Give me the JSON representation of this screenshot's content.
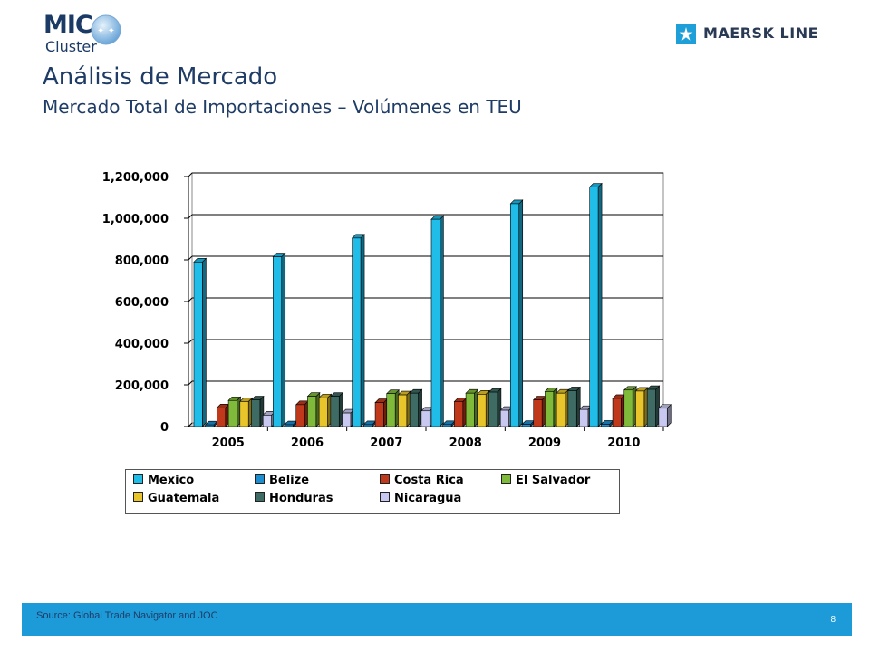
{
  "header": {
    "mic_logo_text": "MIC",
    "mic_logo_sub": "Cluster",
    "maersk_logo_text": "MAERSK LINE"
  },
  "slide": {
    "title": "Análisis de Mercado",
    "subtitle": "Mercado Total de Importaciones – Volúmenes en TEU"
  },
  "footer": {
    "source": "Source: Global Trade Navigator and JOC",
    "page_number": "8"
  },
  "colors": {
    "accent": "#1d9bd8",
    "title": "#1f3c67"
  },
  "chart_data": {
    "type": "bar",
    "title": "",
    "xlabel": "",
    "ylabel": "",
    "categories": [
      "2005",
      "2006",
      "2007",
      "2008",
      "2009",
      "2010"
    ],
    "ylim": [
      0,
      1200000
    ],
    "yticks": [
      0,
      200000,
      400000,
      600000,
      800000,
      1000000,
      1200000
    ],
    "ytick_labels": [
      "0",
      "200,000",
      "400,000",
      "600,000",
      "800,000",
      "1,000,000",
      "1,200,000"
    ],
    "grid": true,
    "legend_position": "bottom",
    "series": [
      {
        "name": "Mexico",
        "color": "#1fbde8",
        "values": [
          790000,
          815000,
          905000,
          995000,
          1070000,
          1150000
        ]
      },
      {
        "name": "Belize",
        "color": "#1d8fd0",
        "values": [
          8000,
          8500,
          9000,
          9500,
          10000,
          11000
        ]
      },
      {
        "name": "Costa Rica",
        "color": "#c0391b",
        "values": [
          90000,
          105000,
          115000,
          120000,
          128000,
          135000
        ]
      },
      {
        "name": "El Salvador",
        "color": "#7fba3a",
        "values": [
          125000,
          145000,
          158000,
          160000,
          168000,
          175000
        ]
      },
      {
        "name": "Guatemala",
        "color": "#e8c52a",
        "values": [
          120000,
          138000,
          152000,
          155000,
          160000,
          170000
        ]
      },
      {
        "name": "Honduras",
        "color": "#3e6b63",
        "values": [
          128000,
          145000,
          160000,
          165000,
          172000,
          178000
        ]
      },
      {
        "name": "Nicaragua",
        "color": "#c8c8f0",
        "values": [
          55000,
          65000,
          75000,
          78000,
          82000,
          88000
        ]
      }
    ]
  }
}
